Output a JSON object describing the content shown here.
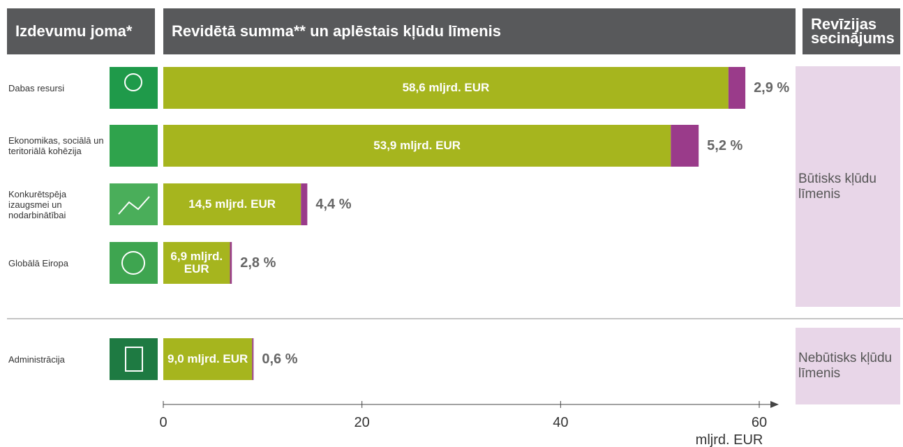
{
  "chart_data": {
    "type": "bar",
    "orientation": "horizontal",
    "headers": [
      "Izdevumu joma*",
      "Revidētā summa** un aplēstais kļūdu līmenis",
      "Revīzijas secinājums"
    ],
    "categories": [
      "Dabas resursi",
      "Ekonomikas, sociālā un teritoriālā kohēzija",
      "Konkurētspēja izaugsmei un nodarbinātībai",
      "Globālā Eiropa",
      "Administrācija"
    ],
    "values": [
      58.6,
      53.9,
      14.5,
      6.9,
      9.0
    ],
    "value_labels": [
      "58,6 mljrd. EUR",
      "53,9 mljrd. EUR",
      "14,5 mljrd. EUR",
      "6,9 mljrd. EUR",
      "9,0 mljrd. EUR"
    ],
    "error_rates": [
      2.9,
      5.2,
      4.4,
      2.8,
      0.6
    ],
    "error_labels": [
      "2,9 %",
      "5,2 %",
      "4,4 %",
      "2,8 %",
      "0,6 %"
    ],
    "conclusions": [
      "Būtisks kļūdu līmenis",
      "Nebūtisks kļūdu līmenis"
    ],
    "xlim": [
      0,
      60
    ],
    "xticks": [
      0,
      20,
      40,
      60
    ],
    "xlabel": "mljrd. EUR",
    "colors": {
      "amount": "#a6b51e",
      "error": "#9a3b8a"
    }
  }
}
